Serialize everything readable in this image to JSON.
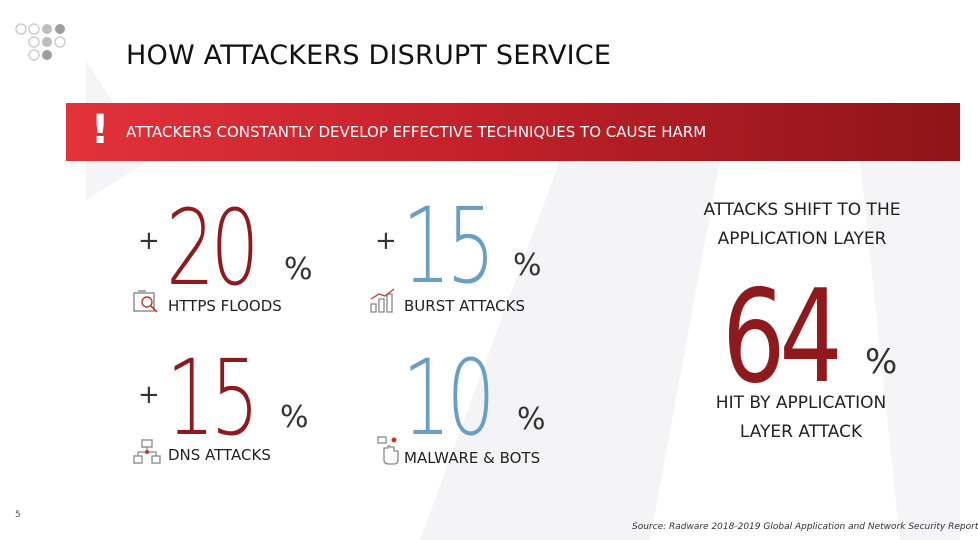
{
  "title": "HOW ATTACKERS DISRUPT SERVICE",
  "banner": {
    "mark": "!",
    "text": "ATTACKERS CONSTANTLY DEVELOP EFFECTIVE TECHNIQUES TO CAUSE HARM"
  },
  "stats": [
    {
      "prefix": "+",
      "value": "20",
      "unit": "%",
      "label": "HTTPS FLOODS",
      "icon": "search-document-icon",
      "color": "#8e1a1e"
    },
    {
      "prefix": "+",
      "value": "15",
      "unit": "%",
      "label": "BURST ATTACKS",
      "icon": "bar-chart-icon",
      "color": "#6a9fc3"
    },
    {
      "prefix": "+",
      "value": "15",
      "unit": "%",
      "label": "DNS ATTACKS",
      "icon": "network-icon",
      "color": "#8e1a1e"
    },
    {
      "prefix": "",
      "value": "10",
      "unit": "%",
      "label": "MALWARE & BOTS",
      "icon": "bot-hand-icon",
      "color": "#6a9fc3"
    }
  ],
  "highlight": {
    "heading": "ATTACKS SHIFT TO THE APPLICATION LAYER",
    "value": "64",
    "unit": "%",
    "caption": "HIT BY APPLICATION LAYER ATTACK",
    "color": "#8e1a1e"
  },
  "page_number": "5",
  "source": "Source: Radware 2018-2019 Global Application and Network Security Report"
}
